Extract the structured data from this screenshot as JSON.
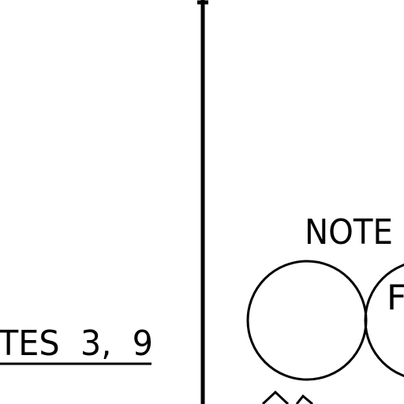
{
  "drawing": {
    "note_label": "NOTE",
    "notes_reference": "TES  3,  9",
    "bubble_letter": "F",
    "colors": {
      "ink": "#000000",
      "paper": "#ffffff"
    }
  }
}
